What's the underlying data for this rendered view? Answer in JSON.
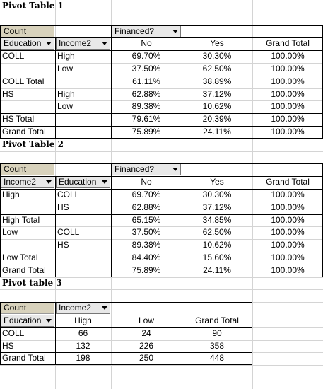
{
  "pt1": {
    "title": "Pivot Table 1",
    "count": "Count",
    "col_field": "Financed?",
    "row_fields": [
      "Education",
      "Income2"
    ],
    "headers": [
      "No",
      "Yes",
      "Grand Total"
    ],
    "rows": [
      {
        "a": "COLL",
        "b": "High",
        "v": [
          "69.70%",
          "30.30%",
          "100.00%"
        ]
      },
      {
        "a": "",
        "b": "Low",
        "v": [
          "37.50%",
          "62.50%",
          "100.00%"
        ]
      },
      {
        "a": "COLL Total",
        "b": "",
        "v": [
          "61.11%",
          "38.89%",
          "100.00%"
        ]
      },
      {
        "a": "HS",
        "b": "High",
        "v": [
          "62.88%",
          "37.12%",
          "100.00%"
        ]
      },
      {
        "a": "",
        "b": "Low",
        "v": [
          "89.38%",
          "10.62%",
          "100.00%"
        ]
      },
      {
        "a": "HS Total",
        "b": "",
        "v": [
          "79.61%",
          "20.39%",
          "100.00%"
        ]
      },
      {
        "a": "Grand Total",
        "b": "",
        "v": [
          "75.89%",
          "24.11%",
          "100.00%"
        ]
      }
    ]
  },
  "pt2": {
    "title": "Pivot Table 2",
    "count": "Count",
    "col_field": "Financed?",
    "row_fields": [
      "Income2",
      "Education"
    ],
    "headers": [
      "No",
      "Yes",
      "Grand Total"
    ],
    "rows": [
      {
        "a": "High",
        "b": "COLL",
        "v": [
          "69.70%",
          "30.30%",
          "100.00%"
        ]
      },
      {
        "a": "",
        "b": "HS",
        "v": [
          "62.88%",
          "37.12%",
          "100.00%"
        ]
      },
      {
        "a": "High Total",
        "b": "",
        "v": [
          "65.15%",
          "34.85%",
          "100.00%"
        ]
      },
      {
        "a": "Low",
        "b": "COLL",
        "v": [
          "37.50%",
          "62.50%",
          "100.00%"
        ]
      },
      {
        "a": "",
        "b": "HS",
        "v": [
          "89.38%",
          "10.62%",
          "100.00%"
        ]
      },
      {
        "a": "Low Total",
        "b": "",
        "v": [
          "84.40%",
          "15.60%",
          "100.00%"
        ]
      },
      {
        "a": "Grand Total",
        "b": "",
        "v": [
          "75.89%",
          "24.11%",
          "100.00%"
        ]
      }
    ]
  },
  "pt3": {
    "title": "Pivot table 3",
    "count": "Count",
    "col_field": "Income2",
    "row_field": "Education",
    "headers": [
      "High",
      "Low",
      "Grand Total"
    ],
    "rows": [
      {
        "a": "COLL",
        "v": [
          "66",
          "24",
          "90"
        ]
      },
      {
        "a": "HS",
        "v": [
          "132",
          "226",
          "358"
        ]
      },
      {
        "a": "Grand Total",
        "v": [
          "198",
          "250",
          "448"
        ]
      }
    ]
  }
}
